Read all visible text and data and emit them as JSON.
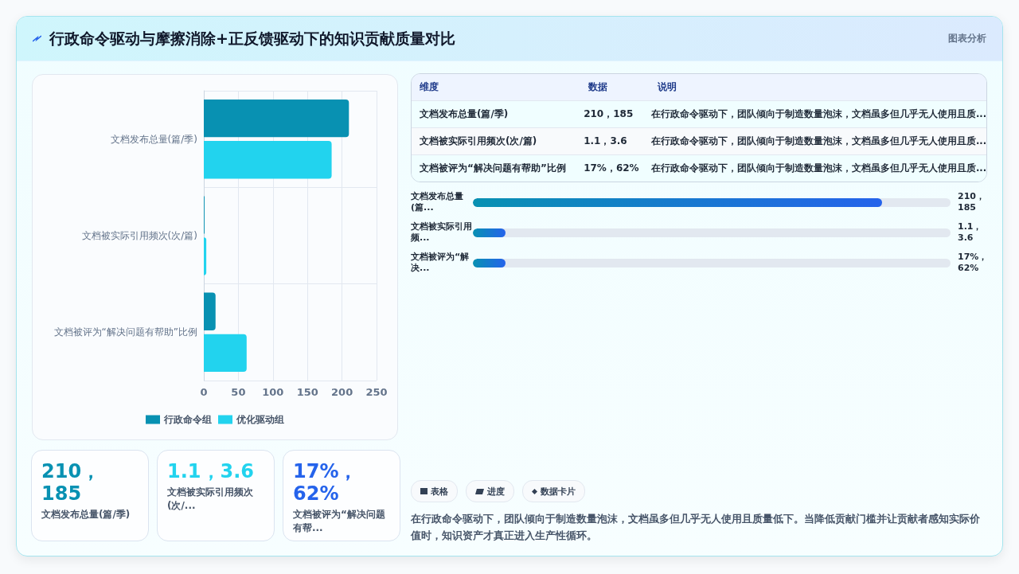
{
  "chart_data": [
    {
      "type": "other",
      "title": "行政命令驱动与摩擦消除+正反馈驱动下的知识贡献质量对比",
      "subtitle": "图表分析"
    },
    {
      "type": "bar",
      "orientation": "horizontal",
      "categories": [
        "文档发布总量(篇/季)",
        "文档被实际引用频次(次/篇)",
        "文档被评为“解决问题有帮助”比例"
      ],
      "series": [
        {
          "name": "行政命令组",
          "color": "#0891b2",
          "values": [
            210,
            1.1,
            17
          ]
        },
        {
          "name": "优化驱动组",
          "color": "#22d3ee",
          "values": [
            185,
            3.6,
            62
          ]
        }
      ],
      "xlim": [
        0,
        250
      ],
      "xticks": [
        0,
        50,
        100,
        150,
        200,
        250
      ],
      "grid": true,
      "legend": "bottom"
    },
    {
      "type": "other",
      "annotations": [
        "维度",
        "数据",
        "说明",
        "文档发布总量(篇/季)",
        "210，185",
        "在行政命令驱动下，团队倾向于制造数量泡沫，文档虽多但几乎无人使用且质...",
        "文档被实际引用频次(次/篇)",
        "1.1，3.6",
        "在行政命令驱动下，团队倾向于制造数量泡沫，文档虽多但几乎无人使用且质...",
        "文档被评为“解决问题有帮助”比例",
        "17%，62%",
        "在行政命令驱动下，团队倾向于制造数量泡沫，文档虽多但几乎无人使用且质..."
      ]
    },
    {
      "type": "other",
      "annotations": [
        "文档发布总量(篇...",
        "210，185",
        "文档被实际引用频...",
        "1.1，3.6",
        "文档被评为“解决...",
        "17%，62%"
      ]
    },
    {
      "type": "other",
      "colors": [
        "#0891b2",
        "#22d3ee",
        "#2563eb"
      ],
      "annotations": [
        "210，185",
        "文档发布总量(篇/季)",
        "1.1，3.6",
        "文档被实际引用频次(次/...",
        "17%，62%",
        "文档被评为“解决问题有帮..."
      ]
    },
    {
      "type": "other",
      "annotations": [
        "表格",
        "进度",
        "数据卡片",
        "在行政命令驱动下，团队倾向于制造数量泡沫，文档虽多但几乎无人使用且质量低下。当降低贡献门槛并让贡献者感知实际价值时，知识资产才真正进入生产性循环。"
      ]
    }
  ]
}
